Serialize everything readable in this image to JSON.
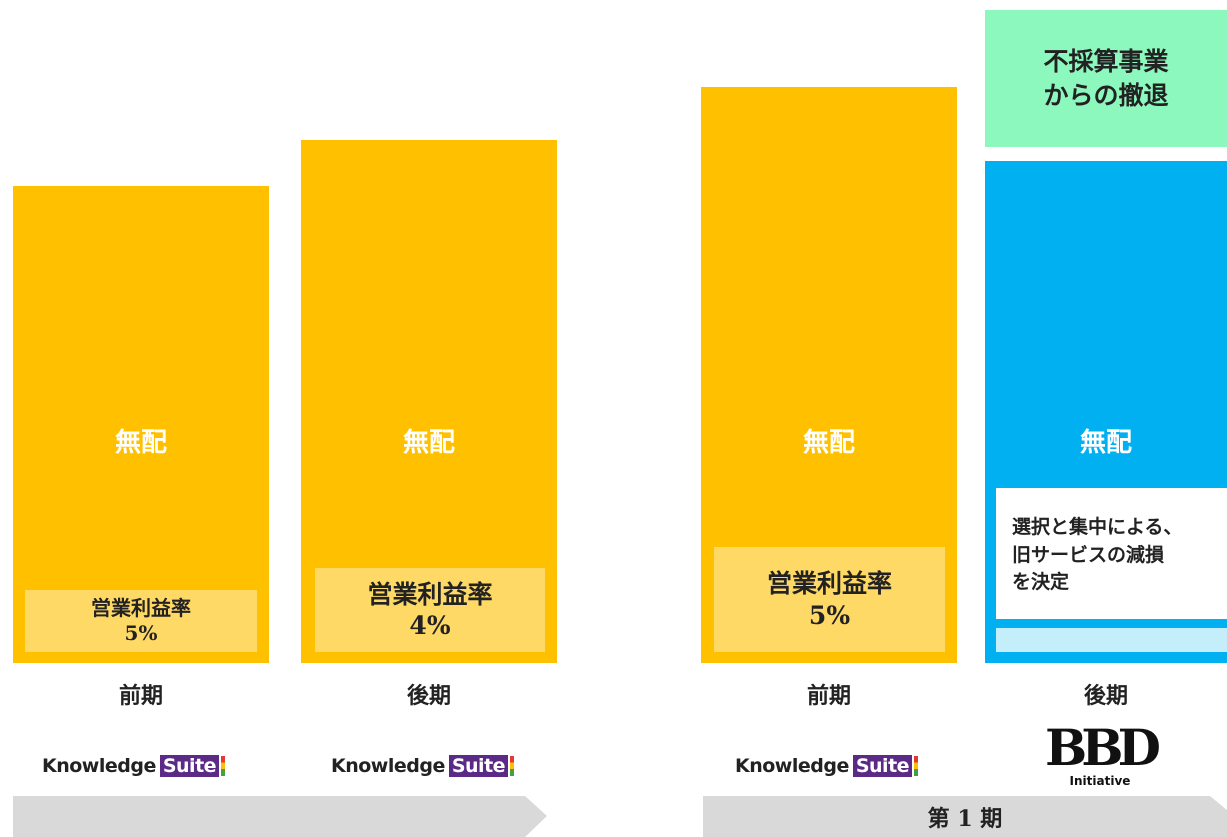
{
  "columns": [
    {
      "center": "無配",
      "period": "前期",
      "margin_label": "営業利益率",
      "margin": "5%"
    },
    {
      "center": "無配",
      "period": "後期",
      "margin_label": "営業利益率",
      "margin": "4%"
    },
    {
      "center": "無配",
      "period": "前期",
      "margin_label": "営業利益率",
      "margin": "5%"
    },
    {
      "center": "無配",
      "period": "後期",
      "note_lines": [
        "選択と集中による、",
        "旧サービスの減損",
        "を決定"
      ],
      "top_box_lines": [
        "不採算事業",
        "からの撤退"
      ]
    }
  ],
  "logos": {
    "knowledge": "Knowledge",
    "suite": "Suite",
    "bbd": "BBD",
    "initiative": "Initiative"
  },
  "phase_label": "第 1 期"
}
